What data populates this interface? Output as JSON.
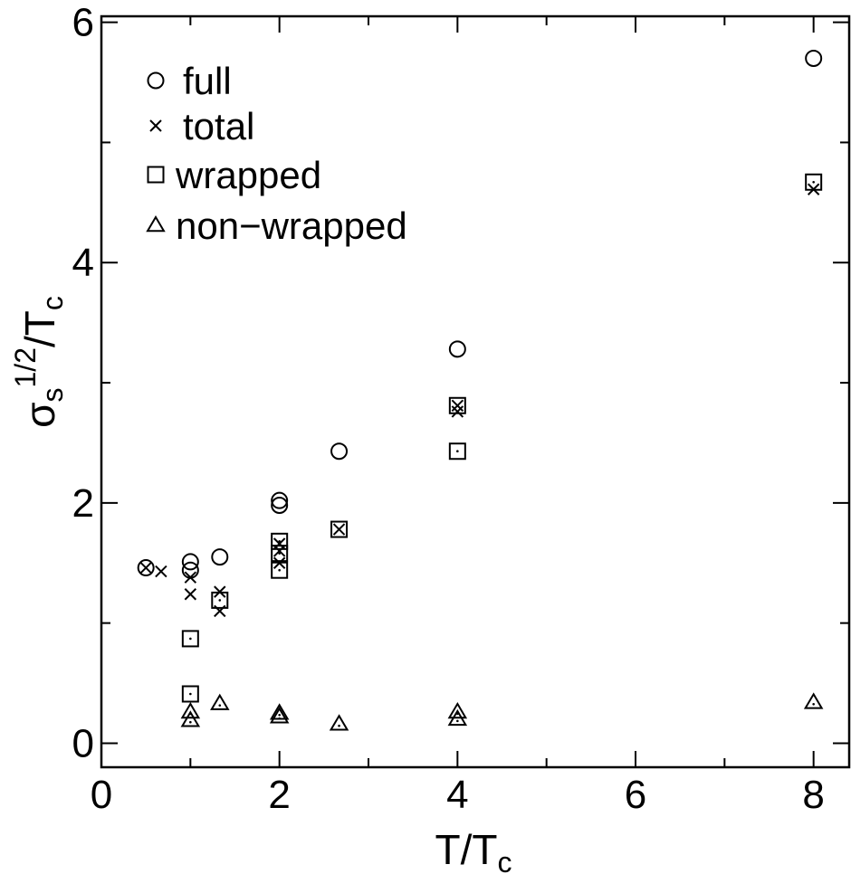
{
  "chart_data": {
    "type": "scatter",
    "xlabel": "T/T",
    "xlabel_sub": "c",
    "ylabel_base": "σ",
    "ylabel_sub": "s",
    "ylabel_sup": "1/2",
    "ylabel_tail": "/T",
    "ylabel_tail_sub": "c",
    "xlim": [
      0,
      8.4
    ],
    "ylim": [
      -0.2,
      6.05
    ],
    "xticks": [
      0,
      2,
      4,
      6,
      8
    ],
    "xtick_labels": [
      "0",
      "2",
      "4",
      "6",
      "8"
    ],
    "yticks": [
      0,
      2,
      4,
      6
    ],
    "ytick_labels": [
      "0",
      "2",
      "4",
      "6"
    ],
    "minor_xticks": [
      1,
      3,
      5,
      7
    ],
    "minor_yticks": [
      1,
      3,
      5
    ],
    "grid": false,
    "legend_position": "top-left",
    "series": [
      {
        "name": "full",
        "marker": "circle",
        "points": [
          [
            0.5,
            1.46
          ],
          [
            1.0,
            1.51
          ],
          [
            1.0,
            1.44
          ],
          [
            1.33,
            1.55
          ],
          [
            2.0,
            2.02
          ],
          [
            2.0,
            1.98
          ],
          [
            2.67,
            2.43
          ],
          [
            4.0,
            3.28
          ],
          [
            8.0,
            5.7
          ]
        ]
      },
      {
        "name": "total",
        "marker": "cross",
        "points": [
          [
            0.5,
            1.46
          ],
          [
            0.67,
            1.43
          ],
          [
            1.0,
            1.38
          ],
          [
            1.0,
            1.24
          ],
          [
            1.33,
            1.26
          ],
          [
            1.33,
            1.1
          ],
          [
            2.0,
            1.66
          ],
          [
            2.0,
            1.6
          ],
          [
            2.0,
            1.5
          ],
          [
            2.67,
            1.78
          ],
          [
            4.0,
            2.81
          ],
          [
            4.0,
            2.76
          ],
          [
            8.0,
            4.61
          ]
        ]
      },
      {
        "name": "wrapped",
        "marker": "square",
        "points": [
          [
            1.0,
            0.87
          ],
          [
            1.0,
            0.41
          ],
          [
            1.33,
            1.19
          ],
          [
            2.0,
            1.68
          ],
          [
            2.0,
            1.58
          ],
          [
            2.0,
            1.44
          ],
          [
            2.67,
            1.78
          ],
          [
            4.0,
            2.81
          ],
          [
            4.0,
            2.43
          ],
          [
            8.0,
            4.67
          ]
        ]
      },
      {
        "name": "non−wrapped",
        "marker": "triangle",
        "points": [
          [
            1.0,
            0.26
          ],
          [
            1.0,
            0.19
          ],
          [
            1.33,
            0.33
          ],
          [
            2.0,
            0.25
          ],
          [
            2.0,
            0.22
          ],
          [
            2.67,
            0.16
          ],
          [
            4.0,
            0.26
          ],
          [
            4.0,
            0.2
          ],
          [
            8.0,
            0.34
          ]
        ]
      }
    ]
  }
}
